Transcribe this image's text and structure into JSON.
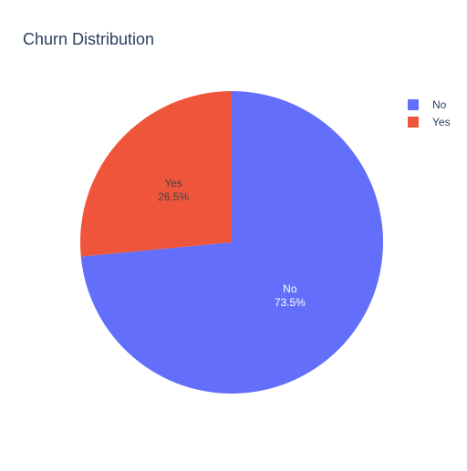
{
  "chart_data": {
    "type": "pie",
    "title": "Churn Distribution",
    "slices": [
      {
        "label": "No",
        "value": 73.5,
        "percent_label": "73.5%",
        "color": "#636efa"
      },
      {
        "label": "Yes",
        "value": 26.5,
        "percent_label": "26.5%",
        "color": "#ef553b"
      }
    ],
    "legend": {
      "placement": "top-right",
      "entries": [
        {
          "label": "No",
          "color": "#636efa"
        },
        {
          "label": "Yes",
          "color": "#ef553b"
        }
      ]
    },
    "label_colors": {
      "No": "#ffffff",
      "Yes": "#444444"
    }
  }
}
